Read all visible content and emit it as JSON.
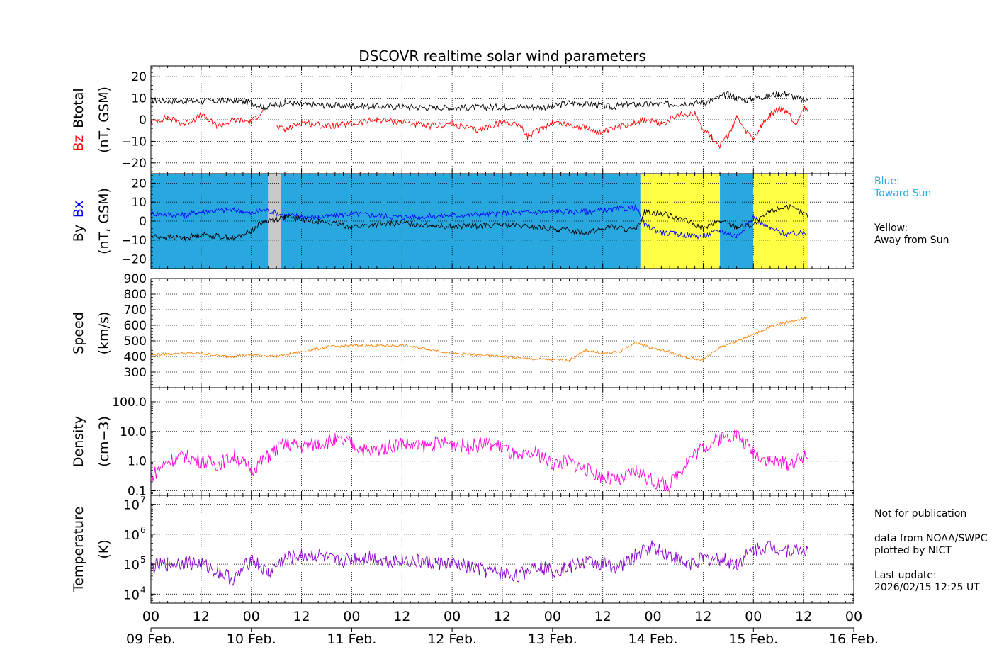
{
  "chart_data": {
    "type": "line",
    "title": "DSCOVR realtime solar wind parameters",
    "x_range_hours": [
      0,
      168
    ],
    "x_tick_labels": [
      "00",
      "12",
      "00",
      "12",
      "00",
      "12",
      "00",
      "12",
      "00",
      "12",
      "00",
      "12",
      "00",
      "12",
      "00"
    ],
    "date_labels": [
      "09 Feb.",
      "10 Feb.",
      "11 Feb.",
      "12 Feb.",
      "13 Feb.",
      "14 Feb.",
      "15 Feb.",
      "16 Feb."
    ],
    "grid": true,
    "panels": [
      {
        "id": "btotal-bz",
        "ylabel_parts": [
          {
            "text": "Bz",
            "color": "#ff0000"
          },
          {
            "text": "Btotal",
            "color": "#000000"
          }
        ],
        "ylabel_units": "(nT, GSM)",
        "ylim": [
          -25,
          25
        ],
        "yticks": [
          20,
          10,
          0,
          -10,
          -20
        ],
        "ytick_labels": [
          "20",
          "10",
          "0",
          "−10",
          "−20"
        ],
        "series": [
          {
            "name": "Btotal",
            "color": "#000000",
            "x": [
              0,
              12,
              20,
              24,
              27,
              30,
              32,
              36,
              48,
              60,
              72,
              84,
              96,
              100,
              106,
              110,
              114,
              120,
              132,
              134,
              138,
              140,
              142,
              144,
              147,
              150,
              152,
              156,
              157
            ],
            "y": [
              9,
              8.5,
              9,
              8,
              6,
              7,
              8,
              7,
              6.5,
              6,
              5.5,
              6,
              6,
              8,
              7,
              6,
              7,
              7,
              8,
              9,
              12,
              10,
              9,
              10,
              11,
              12,
              12,
              9,
              9
            ]
          },
          {
            "name": "Bz",
            "color": "#ff0000",
            "x": [
              0,
              4,
              8,
              12,
              16,
              20,
              24,
              27,
              28,
              30,
              32,
              36,
              42,
              48,
              54,
              60,
              66,
              72,
              78,
              84,
              88,
              90,
              96,
              102,
              108,
              114,
              118,
              122,
              126,
              130,
              132,
              134,
              136,
              138,
              140,
              142,
              144,
              146,
              148,
              150,
              152,
              154,
              156,
              157
            ],
            "y": [
              -1,
              1,
              -2,
              2,
              -3,
              0,
              -1,
              5,
              null,
              -3,
              -5,
              -1,
              -3,
              -2,
              0,
              -1,
              -3,
              -2,
              -5,
              -1,
              -2,
              -8,
              -1,
              -3,
              -6,
              -2,
              0,
              -2,
              2,
              3,
              -4,
              -8,
              -12,
              -7,
              1,
              -5,
              -9,
              -3,
              2,
              5,
              4,
              -2,
              5,
              5
            ]
          }
        ]
      },
      {
        "id": "by-bx",
        "ylabel_parts": [
          {
            "text": "By",
            "color": "#000000"
          },
          {
            "text": "Bx",
            "color": "#0000ff"
          }
        ],
        "ylabel_units": "(nT, GSM)",
        "ylim": [
          -25,
          25
        ],
        "yticks": [
          20,
          10,
          0,
          -10,
          -20
        ],
        "ytick_labels": [
          "20",
          "10",
          "0",
          "−10",
          "−20"
        ],
        "sector_bands": [
          {
            "x0": 0,
            "x1": 28,
            "color": "#29a8e0"
          },
          {
            "x0": 28,
            "x1": 31,
            "color": "#c8c8c8"
          },
          {
            "x0": 31,
            "x1": 117,
            "color": "#29a8e0"
          },
          {
            "x0": 117,
            "x1": 136,
            "color": "#ffff44"
          },
          {
            "x0": 136,
            "x1": 144,
            "color": "#29a8e0"
          },
          {
            "x0": 144,
            "x1": 157,
            "color": "#ffff44"
          }
        ],
        "series": [
          {
            "name": "Bx",
            "color": "#0000ff",
            "x": [
              0,
              8,
              12,
              20,
              24,
              27,
              32,
              40,
              48,
              60,
              72,
              84,
              96,
              104,
              110,
              116,
              118,
              122,
              126,
              132,
              136,
              140,
              144,
              148,
              152,
              157
            ],
            "y": [
              4,
              3,
              5,
              6,
              4,
              6,
              3,
              2,
              4,
              2,
              3,
              4,
              5,
              5,
              6,
              7,
              -2,
              -6,
              -7,
              -8,
              -5,
              -8,
              2,
              -4,
              -7,
              -6
            ]
          },
          {
            "name": "By",
            "color": "#000000",
            "x": [
              0,
              8,
              12,
              20,
              24,
              27,
              32,
              40,
              48,
              60,
              72,
              84,
              96,
              104,
              110,
              116,
              118,
              122,
              126,
              132,
              136,
              140,
              144,
              148,
              152,
              157
            ],
            "y": [
              -8,
              -9,
              -7,
              -9,
              -5,
              0,
              2,
              0,
              -3,
              -1,
              -3,
              -2,
              -4,
              -6,
              -3,
              -5,
              5,
              4,
              2,
              -4,
              0,
              -3,
              -2,
              5,
              8,
              3
            ]
          }
        ],
        "side_legend": [
          {
            "text": "Blue:",
            "color": "#29a8e0"
          },
          {
            "text": "Toward Sun",
            "color": "#29a8e0"
          },
          {
            "text": "Yellow:",
            "color": "#000000"
          },
          {
            "text": "Away from Sun",
            "color": "#000000"
          }
        ]
      },
      {
        "id": "speed",
        "ylabel_parts": [
          {
            "text": "Speed",
            "color": "#000000"
          }
        ],
        "ylabel_units": "(km/s)",
        "ylim": [
          200,
          900
        ],
        "yticks": [
          900,
          800,
          700,
          600,
          500,
          400,
          300
        ],
        "ytick_labels": [
          "900",
          "800",
          "700",
          "600",
          "500",
          "400",
          "300"
        ],
        "series": [
          {
            "name": "Speed",
            "color": "#ff8000",
            "x": [
              0,
              6,
              12,
              18,
              24,
              30,
              36,
              42,
              48,
              54,
              60,
              66,
              72,
              78,
              84,
              90,
              96,
              100,
              104,
              108,
              112,
              116,
              120,
              124,
              128,
              132,
              136,
              140,
              144,
              148,
              152,
              157
            ],
            "y": [
              410,
              420,
              420,
              400,
              410,
              400,
              430,
              460,
              470,
              470,
              470,
              450,
              420,
              410,
              400,
              385,
              380,
              375,
              440,
              420,
              430,
              490,
              450,
              430,
              390,
              380,
              460,
              500,
              540,
              590,
              620,
              650
            ]
          }
        ]
      },
      {
        "id": "density",
        "ylabel_parts": [
          {
            "text": "Density",
            "color": "#000000"
          }
        ],
        "ylabel_units": "(cm−3)",
        "ylim": [
          0.07,
          300
        ],
        "ylog": true,
        "yticks": [
          100,
          10,
          1,
          0.1
        ],
        "ytick_labels": [
          "100.0",
          "10.0",
          "1.0",
          "0.1"
        ],
        "series": [
          {
            "name": "Density",
            "color": "#ff00dd",
            "x": [
              0,
              4,
              8,
              12,
              16,
              20,
              24,
              28,
              32,
              36,
              40,
              44,
              48,
              52,
              56,
              60,
              64,
              68,
              72,
              76,
              80,
              84,
              88,
              92,
              96,
              100,
              104,
              108,
              112,
              116,
              120,
              124,
              128,
              132,
              136,
              140,
              144,
              148,
              152,
              157
            ],
            "y": [
              0.3,
              1.0,
              1.5,
              1.0,
              0.8,
              1.5,
              0.5,
              1.5,
              4,
              3,
              4,
              5,
              4,
              2,
              3,
              4,
              3,
              4,
              4,
              3,
              4,
              3,
              1.2,
              2,
              0.8,
              1.0,
              0.5,
              0.3,
              0.2,
              0.5,
              0.2,
              0.15,
              1,
              3,
              6,
              8,
              2,
              1,
              0.8,
              1.5
            ]
          }
        ]
      },
      {
        "id": "temperature",
        "ylabel_parts": [
          {
            "text": "Temperature",
            "color": "#000000"
          }
        ],
        "ylabel_units": "(K)",
        "ylim": [
          5000,
          20000000
        ],
        "ylog": true,
        "yticks": [
          10000000,
          1000000,
          100000,
          10000
        ],
        "ytick_bases": [
          "10",
          "10",
          "10",
          "10"
        ],
        "ytick_exps": [
          "7",
          "6",
          "5",
          "4"
        ],
        "series": [
          {
            "name": "Temperature",
            "color": "#8800cc",
            "x": [
              0,
              4,
              8,
              12,
              16,
              20,
              24,
              28,
              32,
              36,
              40,
              44,
              48,
              52,
              56,
              60,
              64,
              68,
              72,
              76,
              80,
              84,
              88,
              92,
              96,
              100,
              104,
              108,
              112,
              116,
              120,
              124,
              128,
              132,
              136,
              140,
              144,
              148,
              152,
              157
            ],
            "y": [
              80000,
              100000,
              120000,
              100000,
              60000,
              30000,
              150000,
              50000,
              150000,
              200000,
              200000,
              120000,
              150000,
              180000,
              130000,
              140000,
              120000,
              110000,
              100000,
              80000,
              60000,
              50000,
              40000,
              100000,
              60000,
              80000,
              120000,
              100000,
              80000,
              200000,
              400000,
              200000,
              100000,
              150000,
              150000,
              100000,
              300000,
              400000,
              300000,
              300000
            ]
          }
        ]
      }
    ]
  },
  "notes": {
    "not_for_publication": "Not for publication",
    "data_source_1": "data from NOAA/SWPC",
    "data_source_2": "plotted by NICT",
    "last_update_label": "Last update:",
    "last_update_value": "2026/02/15 12:25 UT"
  }
}
